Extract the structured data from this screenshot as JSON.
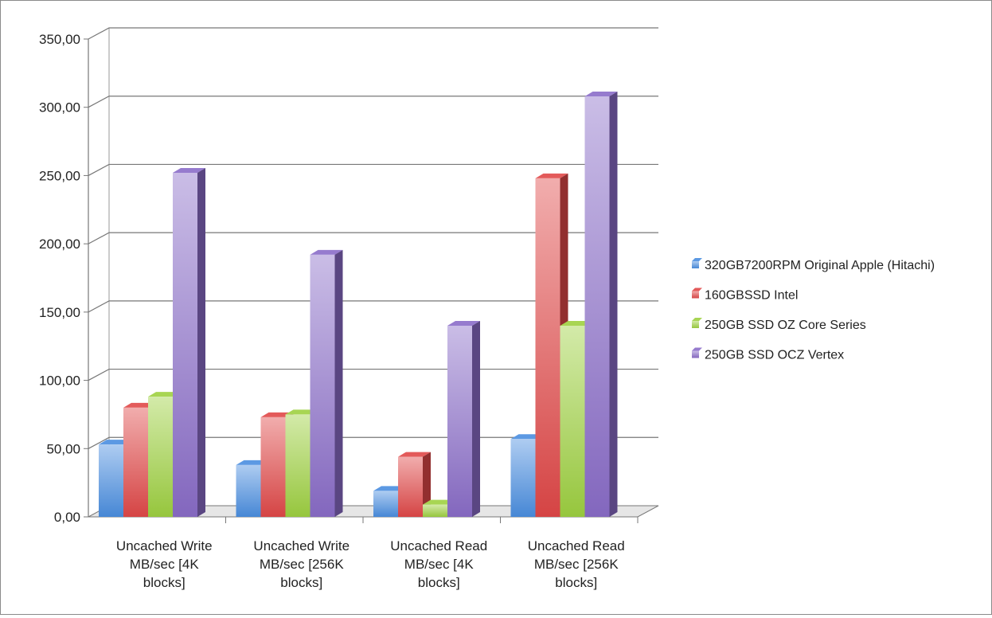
{
  "chart_data": {
    "type": "bar",
    "title": "",
    "xlabel": "",
    "ylabel": "",
    "ylim": [
      0,
      350
    ],
    "yticks": [
      "0,00",
      "50,00",
      "100,00",
      "150,00",
      "200,00",
      "250,00",
      "300,00",
      "350,00"
    ],
    "categories": [
      [
        "Uncached Write",
        "MB/sec [4K",
        "blocks]"
      ],
      [
        "Uncached Write",
        "MB/sec [256K",
        "blocks]"
      ],
      [
        "Uncached Read",
        "MB/sec [4K",
        "blocks]"
      ],
      [
        "Uncached Read",
        "MB/sec [256K",
        "blocks]"
      ]
    ],
    "series": [
      {
        "name": "320GB7200RPM Original Apple (Hitachi)",
        "values": [
          53,
          38,
          19,
          57
        ],
        "color": "#4a8ee0"
      },
      {
        "name": "160GBSSD Intel",
        "values": [
          80,
          73,
          44,
          248
        ],
        "color": "#e04848"
      },
      {
        "name": "250GB SSD OZ Core Series",
        "values": [
          88,
          75,
          9,
          140
        ],
        "color": "#9ed040"
      },
      {
        "name": "250GB SSD OCZ Vertex",
        "values": [
          252,
          192,
          140,
          308
        ],
        "color": "#8a6cc8"
      }
    ],
    "grid": true,
    "legend": "right",
    "style": "3d-column"
  }
}
